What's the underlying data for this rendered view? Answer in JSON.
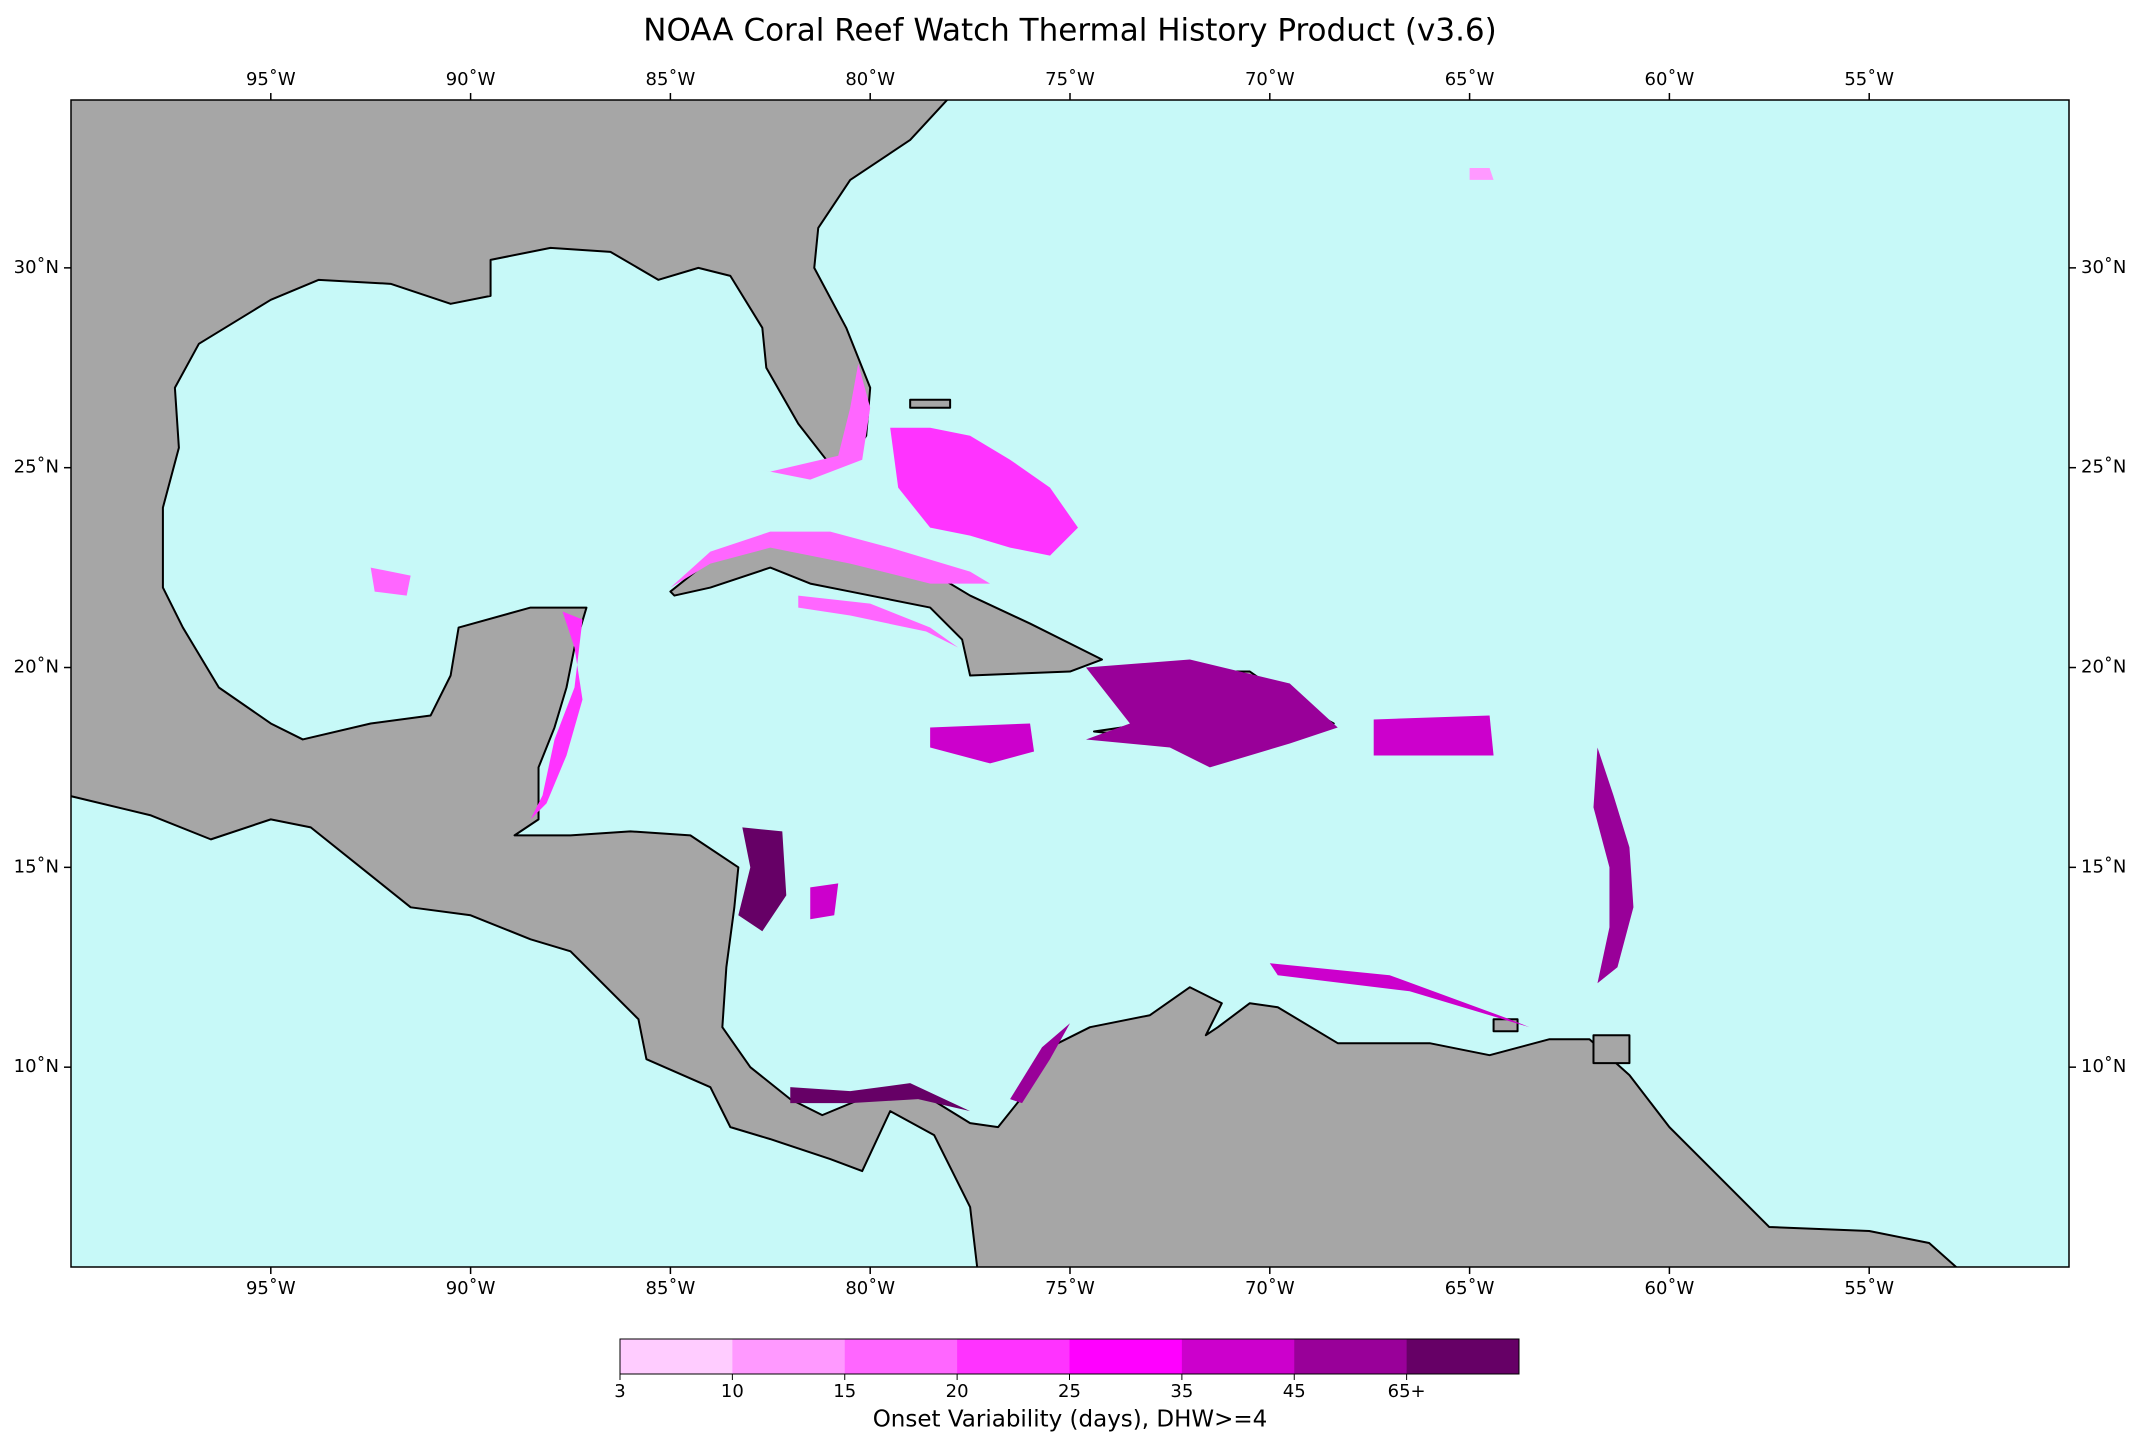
{
  "chart_data": {
    "type": "map",
    "title": "NOAA Coral Reef Watch Thermal History Product (v3.6)",
    "xlim": [
      -100,
      -50
    ],
    "ylim": [
      5,
      34.2
    ],
    "xticks": [
      {
        "value": -95,
        "label": "95˚W"
      },
      {
        "value": -90,
        "label": "90˚W"
      },
      {
        "value": -85,
        "label": "85˚W"
      },
      {
        "value": -80,
        "label": "80˚W"
      },
      {
        "value": -75,
        "label": "75˚W"
      },
      {
        "value": -70,
        "label": "70˚W"
      },
      {
        "value": -65,
        "label": "65˚W"
      },
      {
        "value": -60,
        "label": "60˚W"
      },
      {
        "value": -55,
        "label": "55˚W"
      }
    ],
    "yticks": [
      {
        "value": 10,
        "label": "10˚N"
      },
      {
        "value": 15,
        "label": "15˚N"
      },
      {
        "value": 20,
        "label": "20˚N"
      },
      {
        "value": 25,
        "label": "25˚N"
      },
      {
        "value": 30,
        "label": "30˚N"
      }
    ],
    "ocean_color": "#c7f9f8",
    "land_color": "#a6a6a6",
    "colorbar": {
      "label": "Onset Variability (days), DHW>=4",
      "ticks": [
        3,
        10,
        15,
        20,
        25,
        35,
        45,
        {
          "value": 65,
          "label": "65+"
        }
      ],
      "colors": [
        "#ffccff",
        "#ff99ff",
        "#ff66ff",
        "#ff33ff",
        "#ff00ff",
        "#cc00cc",
        "#990099",
        "#660066"
      ]
    }
  }
}
